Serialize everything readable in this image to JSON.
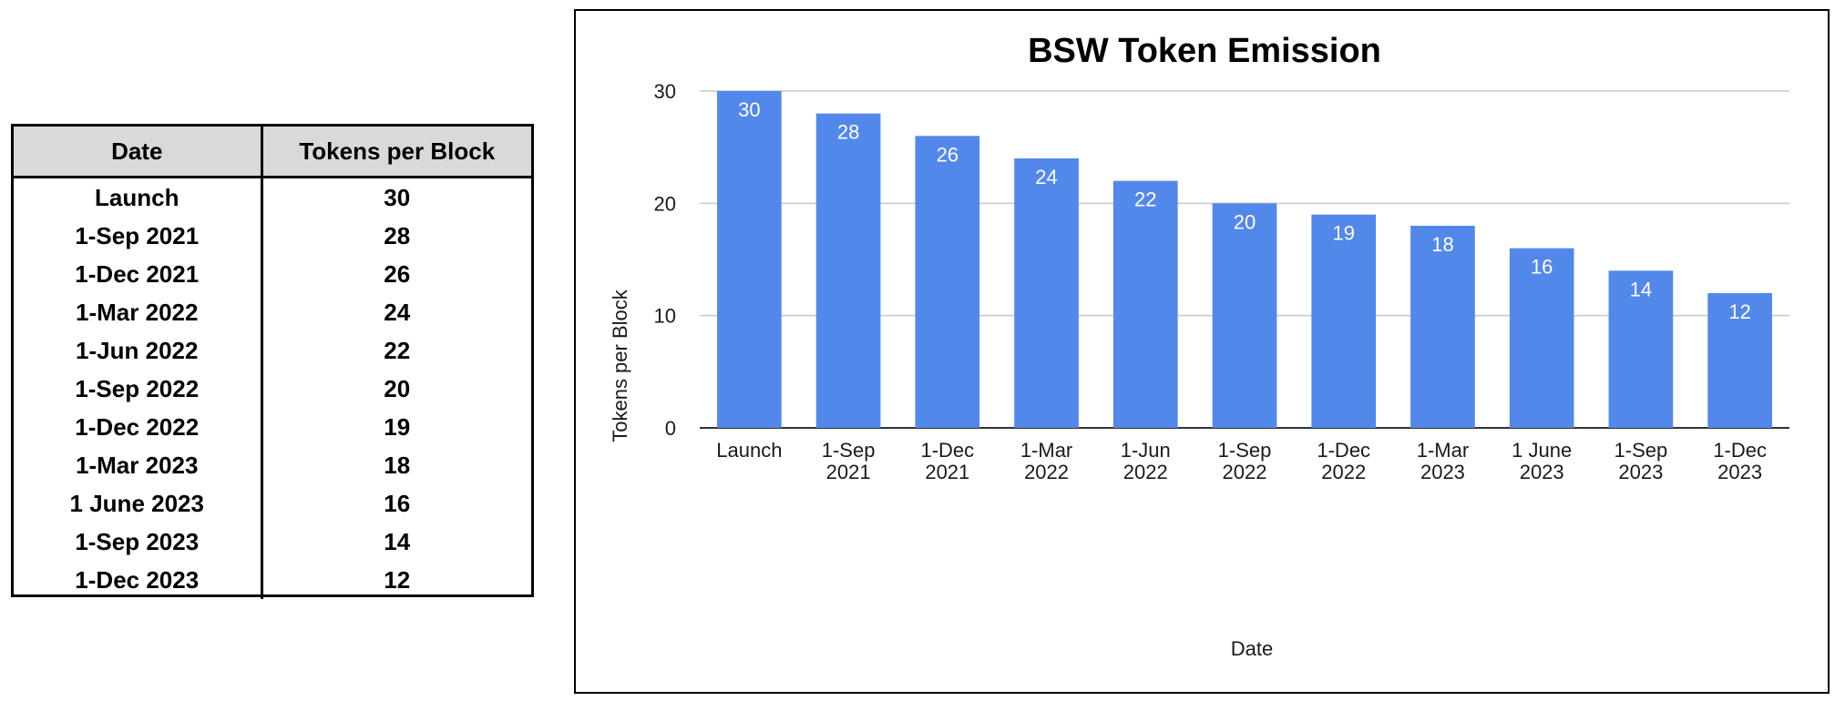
{
  "table": {
    "headers": [
      "Date",
      "Tokens per Block"
    ],
    "rows": [
      [
        "Launch",
        "30"
      ],
      [
        "1-Sep 2021",
        "28"
      ],
      [
        "1-Dec 2021",
        "26"
      ],
      [
        "1-Mar 2022",
        "24"
      ],
      [
        "1-Jun 2022",
        "22"
      ],
      [
        "1-Sep 2022",
        "20"
      ],
      [
        "1-Dec 2022",
        "19"
      ],
      [
        "1-Mar 2023",
        "18"
      ],
      [
        "1 June 2023",
        "16"
      ],
      [
        "1-Sep 2023",
        "14"
      ],
      [
        "1-Dec 2023",
        "12"
      ]
    ]
  },
  "chart_data": {
    "type": "bar",
    "title": "BSW Token Emission",
    "xlabel": "Date",
    "ylabel": "Tokens per Block",
    "categories": [
      [
        "Launch"
      ],
      [
        "1-Sep",
        "2021"
      ],
      [
        "1-Dec",
        "2021"
      ],
      [
        "1-Mar",
        "2022"
      ],
      [
        "1-Jun",
        "2022"
      ],
      [
        "1-Sep",
        "2022"
      ],
      [
        "1-Dec",
        "2022"
      ],
      [
        "1-Mar",
        "2023"
      ],
      [
        "1 June",
        "2023"
      ],
      [
        "1-Sep",
        "2023"
      ],
      [
        "1-Dec",
        "2023"
      ]
    ],
    "values": [
      30,
      28,
      26,
      24,
      22,
      20,
      19,
      18,
      16,
      14,
      12
    ],
    "data_labels": true,
    "ylim": [
      0,
      30
    ],
    "yticks": [
      0,
      10,
      20,
      30
    ],
    "grid": true,
    "bar_color": "#5388eb",
    "legend": "none"
  }
}
